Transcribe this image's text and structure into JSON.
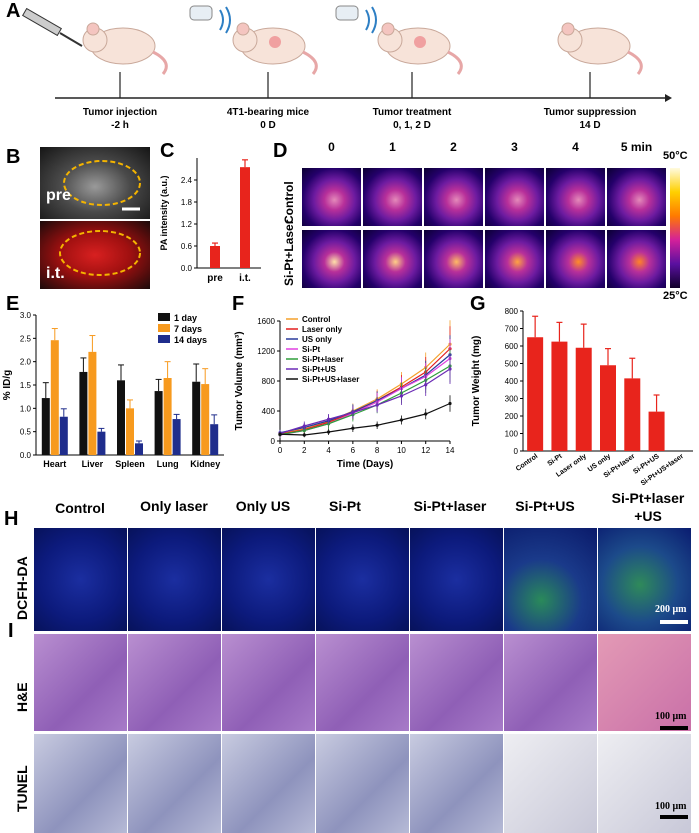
{
  "panels": {
    "A": "A",
    "B": "B",
    "C": "C",
    "D": "D",
    "E": "E",
    "F": "F",
    "G": "G",
    "H": "H",
    "I": "I"
  },
  "timeline": {
    "events": [
      {
        "title": "Tumor injection",
        "sub": "-2 h"
      },
      {
        "title": "4T1-bearing mice",
        "sub": "0 D"
      },
      {
        "title": "Tumor treatment",
        "sub": "0, 1, 2 D"
      },
      {
        "title": "Tumor suppression",
        "sub": "14 D"
      }
    ]
  },
  "panel_b": {
    "pre": "pre",
    "it": "i.t."
  },
  "panel_d": {
    "times": [
      "0",
      "1",
      "2",
      "3",
      "4",
      "5 min"
    ],
    "rows": [
      "Control",
      "Si-Pt+Laser"
    ],
    "scale_max": "50°C",
    "scale_min": "25°C"
  },
  "panel_h": {
    "groups": [
      "Control",
      "Only laser",
      "Only US",
      "Si-Pt",
      "Si-Pt+laser",
      "Si-Pt+US",
      "Si-Pt+laser",
      "+US"
    ],
    "row_h": "DCFH-DA",
    "row_i1": "H&E",
    "row_i2": "TUNEL",
    "scale": "200 μm",
    "scale2": "100 μm",
    "scale3": "100 μm"
  },
  "chart_data": [
    {
      "panel": "C",
      "type": "bar",
      "categories": [
        "pre",
        "i.t."
      ],
      "values": [
        0.6,
        2.75
      ],
      "errors": [
        0.08,
        0.2
      ],
      "ylabel": "PA intensity (a.u.)",
      "yticks": [
        "0.0",
        "0.6",
        "1.2",
        "1.8",
        "2.4"
      ],
      "ylim": [
        0,
        3.0
      ],
      "color": "#e8241c"
    },
    {
      "panel": "E",
      "type": "bar",
      "categories": [
        "Heart",
        "Liver",
        "Spleen",
        "Lung",
        "Kidney"
      ],
      "ylabel": "% ID/g",
      "ylim": [
        0,
        3.0
      ],
      "yticks": [
        "0.0",
        "0.5",
        "1.0",
        "1.5",
        "2.0",
        "2.5",
        "3.0"
      ],
      "series": [
        {
          "name": "1 day",
          "color": "#111111",
          "values": [
            1.22,
            1.78,
            1.6,
            1.37,
            1.57
          ],
          "errors": [
            0.33,
            0.3,
            0.33,
            0.25,
            0.38
          ]
        },
        {
          "name": "7 days",
          "color": "#f79a1e",
          "values": [
            2.46,
            2.21,
            1.0,
            1.65,
            1.52
          ],
          "errors": [
            0.25,
            0.35,
            0.18,
            0.35,
            0.33
          ]
        },
        {
          "name": "14 days",
          "color": "#1f2d8c",
          "values": [
            0.82,
            0.5,
            0.25,
            0.77,
            0.66
          ],
          "errors": [
            0.17,
            0.07,
            0.05,
            0.1,
            0.2
          ]
        }
      ]
    },
    {
      "panel": "F",
      "type": "line",
      "x": [
        0,
        2,
        4,
        6,
        8,
        10,
        12,
        14
      ],
      "xlabel": "Time (Days)",
      "ylabel": "Tumor Volume (mm³)",
      "xticks": [
        "0",
        "2",
        "4",
        "6",
        "8",
        "10",
        "12",
        "14"
      ],
      "yticks": [
        "0",
        "400",
        "800",
        "1200",
        "1600"
      ],
      "ylim": [
        0,
        1600
      ],
      "series": [
        {
          "name": "Control",
          "color": "#f4a02a",
          "values": [
            100,
            160,
            260,
            400,
            560,
            760,
            980,
            1290
          ],
          "errors": [
            40,
            60,
            80,
            100,
            130,
            160,
            200,
            320
          ]
        },
        {
          "name": "Laser only",
          "color": "#e21e1e",
          "values": [
            90,
            150,
            250,
            380,
            540,
            720,
            920,
            1230
          ],
          "errors": [
            35,
            60,
            80,
            100,
            130,
            160,
            200,
            300
          ]
        },
        {
          "name": "US only",
          "color": "#2a3b9a",
          "values": [
            110,
            180,
            270,
            390,
            540,
            700,
            880,
            1150
          ],
          "errors": [
            40,
            60,
            80,
            100,
            120,
            150,
            190,
            260
          ]
        },
        {
          "name": "Si-Pt",
          "color": "#e040e0",
          "values": [
            80,
            140,
            230,
            370,
            520,
            700,
            860,
            1100
          ],
          "errors": [
            35,
            55,
            70,
            90,
            120,
            150,
            180,
            260
          ]
        },
        {
          "name": "Si-Pt+laser",
          "color": "#2f9f3a",
          "values": [
            85,
            140,
            230,
            350,
            480,
            640,
            810,
            1000
          ],
          "errors": [
            35,
            50,
            70,
            90,
            110,
            140,
            170,
            220
          ]
        },
        {
          "name": "Si-Pt+US",
          "color": "#6b2bb5",
          "values": [
            100,
            200,
            290,
            380,
            480,
            600,
            750,
            960
          ],
          "errors": [
            40,
            60,
            70,
            80,
            100,
            120,
            150,
            200
          ]
        },
        {
          "name": "Si-Pt+US+laser",
          "color": "#111111",
          "values": [
            90,
            80,
            120,
            170,
            210,
            280,
            360,
            500
          ],
          "errors": [
            30,
            30,
            40,
            50,
            50,
            60,
            70,
            110
          ]
        }
      ]
    },
    {
      "panel": "G",
      "type": "bar",
      "categories": [
        "Control",
        "Si-Pt",
        "Laser only",
        "US only",
        "Si-Pt+laser",
        "Si-Pt+US",
        "Si-Pt+US+laser"
      ],
      "values": [
        650,
        625,
        590,
        490,
        415,
        225,
        0
      ],
      "errors": [
        120,
        110,
        135,
        95,
        115,
        95,
        0
      ],
      "ylabel": "Tumor Weight (mg)",
      "yticks": [
        "0",
        "100",
        "200",
        "300",
        "400",
        "500",
        "600",
        "700",
        "800"
      ],
      "ylim": [
        0,
        800
      ],
      "color": "#e8241c"
    }
  ]
}
